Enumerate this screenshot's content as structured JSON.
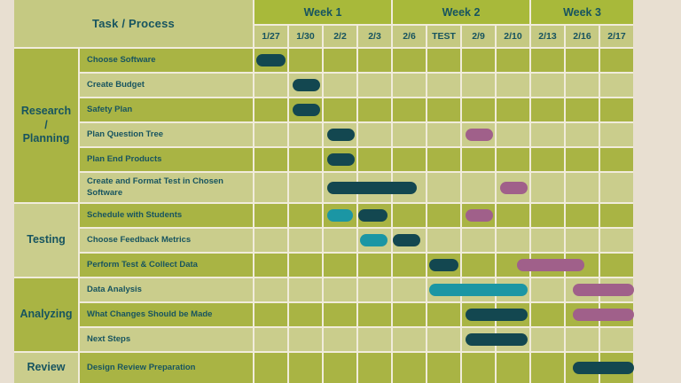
{
  "colors": {
    "background": "#e8dfd1",
    "week_band": "#a8b93a",
    "row_dark": "#a9b444",
    "row_light": "#cacd8c",
    "header_cell": "#c5c982",
    "separator": "#f1ecdb",
    "text": "#17545f",
    "bar_teal_dark": "#134750",
    "bar_cyan": "#1b96a4",
    "bar_plum": "#a0608a"
  },
  "chart_data": {
    "type": "gantt",
    "task_column_label": "Task / Process",
    "weeks": [
      {
        "label": "Week 1",
        "date_span": 4
      },
      {
        "label": "Week 2",
        "date_span": 4
      },
      {
        "label": "Week 3",
        "date_span": 3
      }
    ],
    "dates": [
      "1/27",
      "1/30",
      "2/2",
      "2/3",
      "2/6",
      "TEST",
      "2/9",
      "2/10",
      "2/13",
      "2/16",
      "2/17"
    ],
    "bar_unit_note": "start/end are date-column indices (0 = 1/27 ... 10 = 2/17), fractional within a column",
    "groups": [
      {
        "label": "Research / Planning",
        "display": "Research\n/\nPlanning",
        "shade": "dark",
        "task_count": 6
      },
      {
        "label": "Testing",
        "display": "Testing",
        "shade": "light",
        "task_count": 3
      },
      {
        "label": "Analyzing",
        "display": "Analyzing",
        "shade": "dark",
        "task_count": 3
      },
      {
        "label": "Review",
        "display": "Review",
        "shade": "light",
        "task_count": 1
      }
    ],
    "tasks": [
      {
        "name": "Choose Software",
        "group": "Research / Planning",
        "shade": "dark",
        "bars": [
          {
            "color": "teal_dark",
            "start": 0.06,
            "end": 0.9
          }
        ]
      },
      {
        "name": "Create Budget",
        "group": "Research / Planning",
        "shade": "light",
        "bars": [
          {
            "color": "teal_dark",
            "start": 1.1,
            "end": 1.9
          }
        ]
      },
      {
        "name": "Safety Plan",
        "group": "Research / Planning",
        "shade": "dark",
        "bars": [
          {
            "color": "teal_dark",
            "start": 1.1,
            "end": 1.9
          }
        ]
      },
      {
        "name": "Plan Question Tree",
        "group": "Research / Planning",
        "shade": "light",
        "bars": [
          {
            "color": "teal_dark",
            "start": 2.1,
            "end": 2.9
          },
          {
            "color": "plum",
            "start": 6.1,
            "end": 6.9
          }
        ]
      },
      {
        "name": "Plan End Products",
        "group": "Research / Planning",
        "shade": "dark",
        "bars": [
          {
            "color": "teal_dark",
            "start": 2.1,
            "end": 2.9
          }
        ]
      },
      {
        "name": "Create and Format Test in Chosen Software",
        "group": "Research / Planning",
        "shade": "light",
        "tall": true,
        "bars": [
          {
            "color": "teal_dark",
            "start": 2.1,
            "end": 4.7
          },
          {
            "color": "plum",
            "start": 7.1,
            "end": 7.9
          }
        ]
      },
      {
        "name": "Schedule with Students",
        "group": "Testing",
        "shade": "dark",
        "bars": [
          {
            "color": "cyan",
            "start": 2.1,
            "end": 2.85
          },
          {
            "color": "teal_dark",
            "start": 3.0,
            "end": 3.85
          },
          {
            "color": "plum",
            "start": 6.1,
            "end": 6.9
          }
        ]
      },
      {
        "name": "Choose Feedback Metrics",
        "group": "Testing",
        "shade": "light",
        "bars": [
          {
            "color": "cyan",
            "start": 3.05,
            "end": 3.85
          },
          {
            "color": "teal_dark",
            "start": 4.0,
            "end": 4.8
          }
        ]
      },
      {
        "name": "Perform Test & Collect Data",
        "group": "Testing",
        "shade": "dark",
        "bars": [
          {
            "color": "teal_dark",
            "start": 5.05,
            "end": 5.9
          },
          {
            "color": "plum",
            "start": 7.6,
            "end": 9.55
          }
        ]
      },
      {
        "name": "Data Analysis",
        "group": "Analyzing",
        "shade": "light",
        "bars": [
          {
            "color": "cyan",
            "start": 5.05,
            "end": 7.9
          },
          {
            "color": "plum",
            "start": 9.2,
            "end": 10.97
          }
        ]
      },
      {
        "name": "What Changes Should be Made",
        "group": "Analyzing",
        "shade": "dark",
        "bars": [
          {
            "color": "teal_dark",
            "start": 6.1,
            "end": 7.9
          },
          {
            "color": "plum",
            "start": 9.2,
            "end": 10.97
          }
        ]
      },
      {
        "name": "Next Steps",
        "group": "Analyzing",
        "shade": "light",
        "bars": [
          {
            "color": "teal_dark",
            "start": 6.1,
            "end": 7.9
          }
        ]
      },
      {
        "name": "Design Review Preparation",
        "group": "Review",
        "shade": "dark",
        "bars": [
          {
            "color": "teal_dark",
            "start": 9.2,
            "end": 10.97
          }
        ]
      }
    ]
  }
}
